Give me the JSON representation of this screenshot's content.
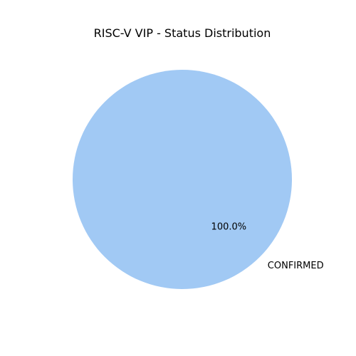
{
  "chart_data": {
    "type": "pie",
    "title": "RISC-V VIP - Status Distribution",
    "slices": [
      {
        "label": "CONFIRMED",
        "value": 100.0,
        "percent_label": "100.0%",
        "color": "#a1c9f4"
      }
    ],
    "legend": "none"
  }
}
